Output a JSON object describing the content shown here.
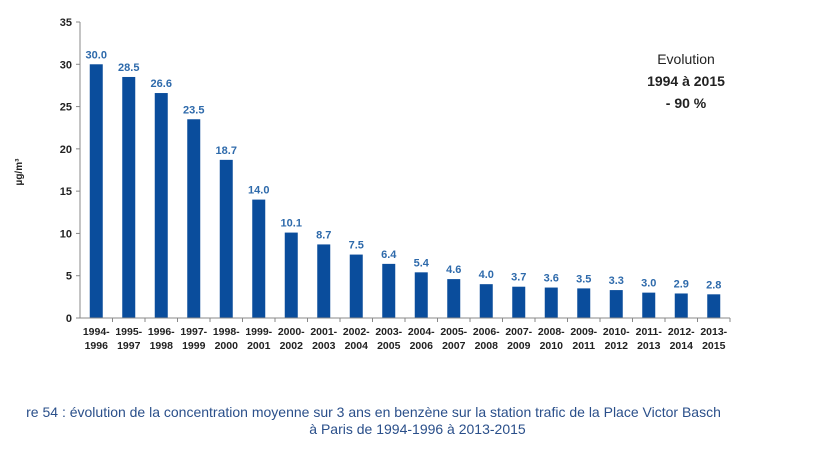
{
  "chart_data": {
    "type": "bar",
    "categories": [
      [
        "1994-",
        "1996"
      ],
      [
        "1995-",
        "1997"
      ],
      [
        "1996-",
        "1998"
      ],
      [
        "1997-",
        "1999"
      ],
      [
        "1998-",
        "2000"
      ],
      [
        "1999-",
        "2001"
      ],
      [
        "2000-",
        "2002"
      ],
      [
        "2001-",
        "2003"
      ],
      [
        "2002-",
        "2004"
      ],
      [
        "2003-",
        "2005"
      ],
      [
        "2004-",
        "2006"
      ],
      [
        "2005-",
        "2007"
      ],
      [
        "2006-",
        "2008"
      ],
      [
        "2007-",
        "2009"
      ],
      [
        "2008-",
        "2010"
      ],
      [
        "2009-",
        "2011"
      ],
      [
        "2010-",
        "2012"
      ],
      [
        "2011-",
        "2013"
      ],
      [
        "2012-",
        "2014"
      ],
      [
        "2013-",
        "2015"
      ]
    ],
    "values": [
      30.0,
      28.5,
      26.6,
      23.5,
      18.7,
      14.0,
      10.1,
      8.7,
      7.5,
      6.4,
      5.4,
      4.6,
      4.0,
      3.7,
      3.6,
      3.5,
      3.3,
      3.0,
      2.9,
      2.8
    ],
    "data_labels": [
      "30.0",
      "28.5",
      "26.6",
      "23.5",
      "18.7",
      "14.0",
      "10.1",
      "8.7",
      "7.5",
      "6.4",
      "5.4",
      "4.6",
      "4.0",
      "3.7",
      "3.6",
      "3.5",
      "3.3",
      "3.0",
      "2.9",
      "2.8"
    ],
    "ylabel": "µg/m³",
    "ylim": [
      0,
      35
    ],
    "yticks": [
      0,
      5,
      10,
      15,
      20,
      25,
      30,
      35
    ],
    "grid": false,
    "bar_color": "#0a4d9c",
    "label_color": "#2e6aab"
  },
  "annotation": {
    "line1": "Evolution",
    "line2": "1994 à 2015",
    "line3": "- 90 %"
  },
  "caption": {
    "line1": "re 54 : évolution de la concentration moyenne sur 3 ans en benzène sur la station trafic de la Place Victor Basch",
    "line2": "à Paris de 1994-1996 à 2013-2015"
  },
  "caption_color": "#2a4f8a"
}
